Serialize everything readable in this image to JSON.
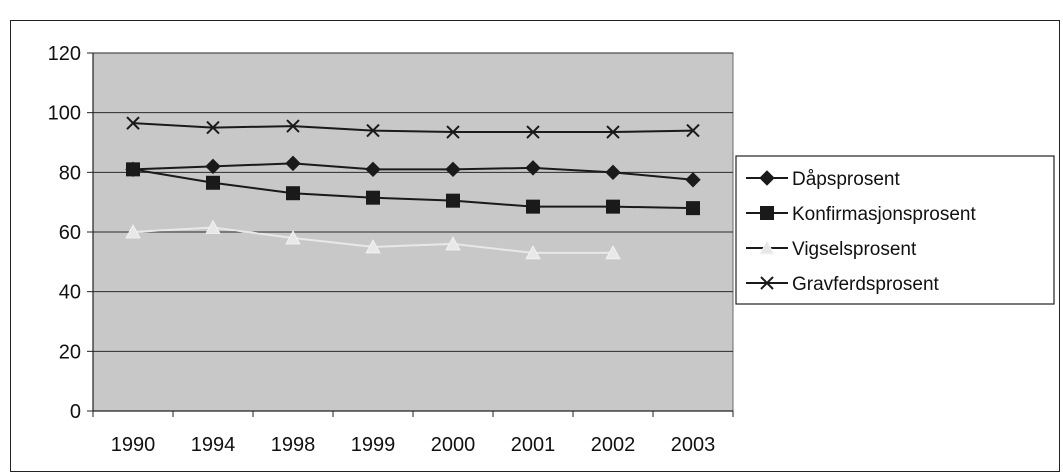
{
  "chart_data": {
    "type": "line",
    "categories": [
      "1990",
      "1994",
      "1998",
      "1999",
      "2000",
      "2001",
      "2002",
      "2003"
    ],
    "ylim": [
      0,
      120
    ],
    "yticks": [
      0,
      20,
      40,
      60,
      80,
      100,
      120
    ],
    "grid": true,
    "legend_position": "right",
    "plot_background": "#c8c8c8",
    "series": [
      {
        "name": "Dåpsprosent",
        "marker": "diamond",
        "color": "#1a1a1a",
        "values": [
          81,
          82,
          83,
          81,
          81,
          81.5,
          80,
          77.5
        ]
      },
      {
        "name": "Konfirmasjonsprosent",
        "marker": "square",
        "color": "#1a1a1a",
        "values": [
          81,
          76.5,
          73,
          71.5,
          70.5,
          68.5,
          68.5,
          68
        ]
      },
      {
        "name": "Vigselsprosent",
        "marker": "triangle",
        "color": "#e8e8e8",
        "values": [
          60,
          61.5,
          58,
          55,
          56,
          53,
          53,
          null
        ]
      },
      {
        "name": "Gravferdsprosent",
        "marker": "x",
        "color": "#1a1a1a",
        "values": [
          96.5,
          95,
          95.5,
          94,
          93.5,
          93.5,
          93.5,
          94
        ]
      }
    ]
  }
}
